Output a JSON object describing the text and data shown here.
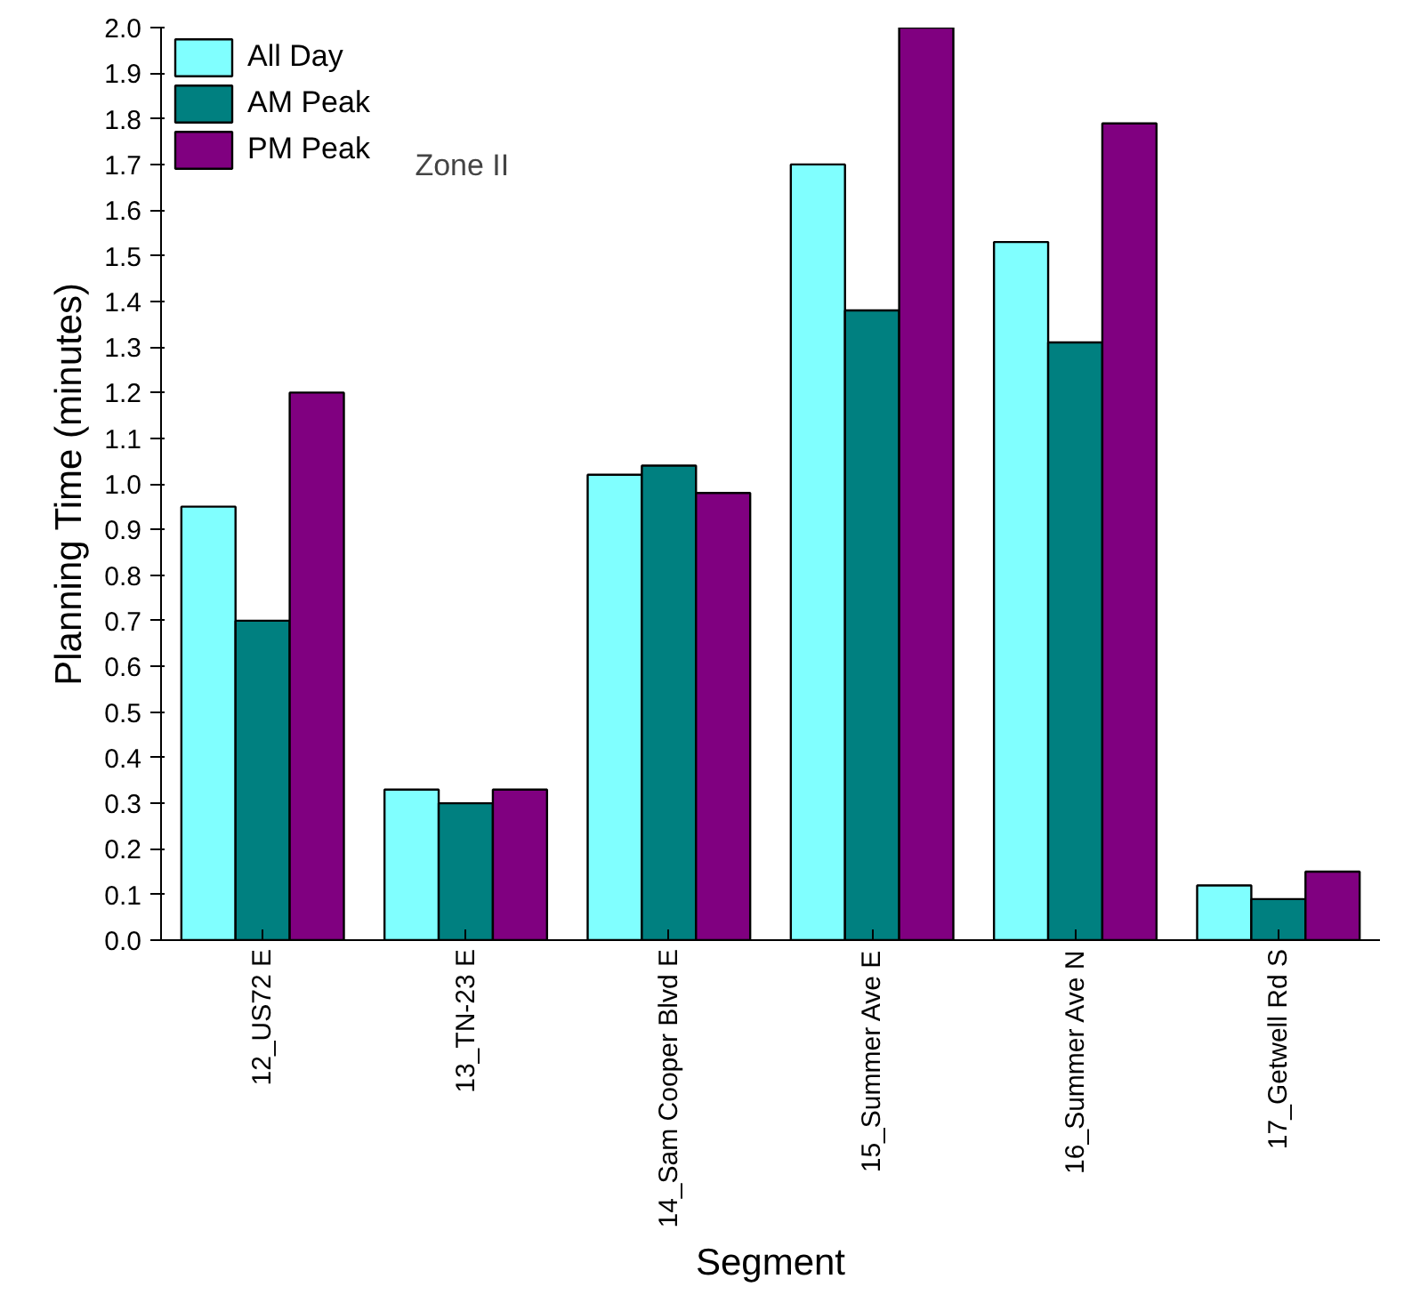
{
  "chart_data": {
    "type": "bar",
    "xlabel": "Segment",
    "ylabel": "Planning Time (minutes)",
    "categories": [
      "12_US72 E",
      "13_TN-23 E",
      "14_Sam Cooper Blvd E",
      "15_Summer Ave E",
      "16_Summer Ave N",
      "17_Getwell Rd S"
    ],
    "series": [
      {
        "name": "All Day",
        "color": "#80ffff",
        "values": [
          0.95,
          0.33,
          1.02,
          1.7,
          1.53,
          0.12
        ]
      },
      {
        "name": "AM Peak",
        "color": "#008080",
        "values": [
          0.7,
          0.3,
          1.04,
          1.38,
          1.31,
          0.09
        ]
      },
      {
        "name": "PM Peak",
        "color": "#800080",
        "values": [
          1.2,
          0.33,
          0.98,
          2.0,
          1.79,
          0.15
        ]
      }
    ],
    "ylim": [
      0,
      2.0
    ],
    "yticks": [
      {
        "value": 0,
        "label": "0.0"
      },
      0.1,
      0.2,
      0.3,
      0.4,
      0.5,
      0.6,
      0.7,
      0.8,
      0.9,
      {
        "value": 1,
        "label": "1.0"
      },
      1.1,
      1.2,
      1.3,
      1.4,
      1.5,
      1.6,
      1.7,
      1.8,
      1.9,
      {
        "value": 2,
        "label": "2.0"
      }
    ],
    "annotations": [
      "Zone II"
    ],
    "legend": "top left",
    "grid": false
  }
}
